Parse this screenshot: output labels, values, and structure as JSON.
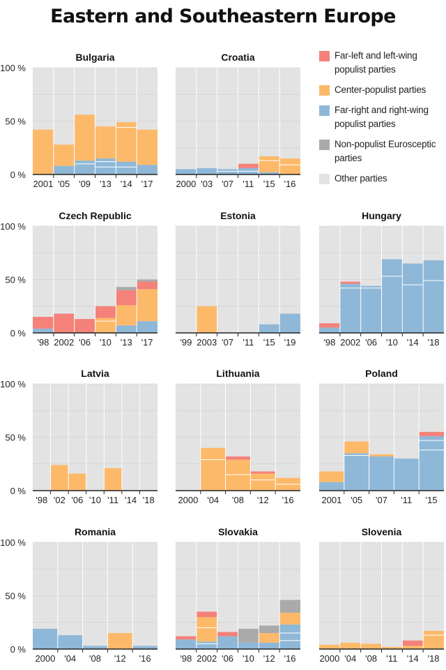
{
  "title": "Eastern and Southeastern Europe",
  "colors": {
    "far_left": "#f4817a",
    "center": "#fdb96a",
    "far_right": "#8fb8d8",
    "non_populist": "#aaaaaa",
    "other": "#e3e3e3"
  },
  "legend": [
    {
      "key": "far_left",
      "label": "Far-left and left-wing populist parties"
    },
    {
      "key": "center",
      "label": "Center-populist parties"
    },
    {
      "key": "far_right",
      "label": "Far-right and right-wing populist parties"
    },
    {
      "key": "non_populist",
      "label": "Non-populist Eurosceptic parties"
    },
    {
      "key": "other",
      "label": "Other parties"
    }
  ],
  "chart_data": [
    {
      "type": "bar",
      "title": "Bulgaria",
      "ylim": [
        0,
        100
      ],
      "yticks": [
        "100 %",
        "50 %",
        "0 %"
      ],
      "categories": [
        "2001",
        "'05",
        "'09",
        "'13",
        "'14",
        "'17"
      ],
      "series": [
        {
          "key": "far_right",
          "values": [
            0,
            8,
            13,
            15,
            12,
            9
          ],
          "parts": [
            [],
            [],
            [
              10
            ],
            [
              7,
              12
            ],
            [
              7
            ],
            []
          ]
        },
        {
          "key": "center",
          "values": [
            42,
            20,
            43,
            30,
            37,
            33
          ],
          "parts": [
            [],
            [],
            [],
            [],
            [
              44
            ],
            []
          ]
        },
        {
          "key": "far_left",
          "values": [
            0,
            0,
            0,
            0,
            0,
            0
          ]
        },
        {
          "key": "non_populist",
          "values": [
            0,
            0,
            0,
            0,
            0,
            0
          ]
        }
      ]
    },
    {
      "type": "bar",
      "title": "Croatia",
      "ylim": [
        0,
        100
      ],
      "categories": [
        "2000",
        "'03",
        "'07",
        "'11",
        "'15",
        "'16"
      ],
      "series": [
        {
          "key": "far_right",
          "values": [
            5,
            6,
            5,
            6,
            2,
            0
          ],
          "parts": [
            [],
            [],
            [
              3
            ],
            [
              3
            ],
            [],
            []
          ]
        },
        {
          "key": "center",
          "values": [
            0,
            0,
            0,
            0,
            15,
            15
          ],
          "parts": [
            [],
            [],
            [],
            [],
            [
              13
            ],
            [
              9
            ]
          ]
        },
        {
          "key": "far_left",
          "values": [
            0,
            0,
            0,
            4,
            0,
            0
          ]
        },
        {
          "key": "non_populist",
          "values": [
            0,
            0,
            0,
            0,
            0,
            0
          ]
        }
      ]
    },
    {
      "type": "bar",
      "title": "Czech Republic",
      "ylim": [
        0,
        100
      ],
      "yticks": [
        "100 %",
        "50 %",
        "0 %"
      ],
      "categories": [
        "'98",
        "2002",
        "'06",
        "'10",
        "'13",
        "'17"
      ],
      "series": [
        {
          "key": "far_right",
          "values": [
            4,
            0,
            0,
            0,
            7,
            11
          ]
        },
        {
          "key": "center",
          "values": [
            0,
            0,
            0,
            14,
            19,
            30
          ],
          "parts": [
            [],
            [],
            [],
            [
              11
            ],
            [],
            []
          ]
        },
        {
          "key": "far_left",
          "values": [
            11,
            18,
            13,
            11,
            14,
            7
          ]
        },
        {
          "key": "non_populist",
          "values": [
            0,
            0,
            0,
            0,
            3,
            2
          ]
        }
      ]
    },
    {
      "type": "bar",
      "title": "Estonia",
      "ylim": [
        0,
        100
      ],
      "categories": [
        "'99",
        "2003",
        "'07",
        "'11",
        "'15",
        "'19"
      ],
      "series": [
        {
          "key": "far_right",
          "values": [
            0,
            0,
            0,
            0,
            8,
            18
          ]
        },
        {
          "key": "center",
          "values": [
            0,
            25,
            0,
            0,
            0,
            0
          ]
        },
        {
          "key": "far_left",
          "values": [
            0,
            0,
            0,
            0,
            0,
            0
          ]
        },
        {
          "key": "non_populist",
          "values": [
            0,
            0,
            0,
            0,
            0,
            0
          ]
        }
      ]
    },
    {
      "type": "bar",
      "title": "Hungary",
      "ylim": [
        0,
        100
      ],
      "categories": [
        "'98",
        "2002",
        "'06",
        "'10",
        "'14",
        "'18"
      ],
      "series": [
        {
          "key": "far_right",
          "values": [
            5,
            46,
            44,
            69,
            65,
            68
          ],
          "parts": [
            [],
            [
              42
            ],
            [
              42
            ],
            [
              53
            ],
            [
              45
            ],
            [
              49
            ]
          ]
        },
        {
          "key": "center",
          "values": [
            0,
            0,
            0,
            0,
            0,
            0
          ]
        },
        {
          "key": "far_left",
          "values": [
            4,
            2,
            0,
            0,
            0,
            0
          ]
        },
        {
          "key": "non_populist",
          "values": [
            0,
            0,
            0,
            0,
            0,
            0
          ]
        }
      ]
    },
    {
      "type": "bar",
      "title": "Latvia",
      "ylim": [
        0,
        100
      ],
      "yticks": [
        "100 %",
        "50 %",
        "0 %"
      ],
      "categories": [
        "'98",
        "'02",
        "'06",
        "'10",
        "'11",
        "'14",
        "'18"
      ],
      "series": [
        {
          "key": "far_right",
          "values": [
            0,
            0,
            0,
            0,
            0,
            0,
            0
          ]
        },
        {
          "key": "center",
          "values": [
            0,
            24,
            16,
            0,
            21,
            0,
            0
          ]
        },
        {
          "key": "far_left",
          "values": [
            0,
            0,
            0,
            0,
            0,
            0,
            0
          ]
        },
        {
          "key": "non_populist",
          "values": [
            0,
            0,
            0,
            0,
            0,
            0,
            0
          ]
        }
      ]
    },
    {
      "type": "bar",
      "title": "Lithuania",
      "ylim": [
        0,
        100
      ],
      "categories": [
        "2000",
        "'04",
        "'08",
        "'12",
        "'16"
      ],
      "series": [
        {
          "key": "far_right",
          "values": [
            0,
            0,
            0,
            0,
            0
          ]
        },
        {
          "key": "center",
          "values": [
            0,
            40,
            29,
            16,
            12
          ],
          "parts": [
            [],
            [
              29
            ],
            [
              15
            ],
            [
              10
            ],
            [
              6
            ]
          ]
        },
        {
          "key": "far_left",
          "values": [
            0,
            0,
            3,
            2,
            0
          ]
        },
        {
          "key": "non_populist",
          "values": [
            0,
            0,
            0,
            0,
            0
          ]
        }
      ]
    },
    {
      "type": "bar",
      "title": "Poland",
      "ylim": [
        0,
        100
      ],
      "categories": [
        "2001",
        "'05",
        "'07",
        "'11",
        "'15"
      ],
      "series": [
        {
          "key": "far_right",
          "values": [
            8,
            35,
            32,
            30,
            51
          ],
          "parts": [
            [],
            [
              33
            ],
            [],
            [],
            [
              38,
              47
            ]
          ]
        },
        {
          "key": "center",
          "values": [
            10,
            11,
            2,
            0,
            0
          ]
        },
        {
          "key": "far_left",
          "values": [
            0,
            0,
            0,
            0,
            4
          ]
        },
        {
          "key": "non_populist",
          "values": [
            0,
            0,
            0,
            0,
            0
          ]
        }
      ]
    },
    {
      "type": "bar",
      "title": "Romania",
      "ylim": [
        0,
        100
      ],
      "yticks": [
        "100 %",
        "50 %",
        "0 %"
      ],
      "categories": [
        "2000",
        "'04",
        "'08",
        "'12",
        "'16"
      ],
      "series": [
        {
          "key": "far_right",
          "values": [
            19,
            13,
            3,
            0,
            3
          ]
        },
        {
          "key": "center",
          "values": [
            0,
            0,
            0,
            15,
            0
          ]
        },
        {
          "key": "far_left",
          "values": [
            0,
            0,
            0,
            0,
            0
          ]
        },
        {
          "key": "non_populist",
          "values": [
            0,
            0,
            0,
            0,
            0
          ]
        }
      ]
    },
    {
      "type": "bar",
      "title": "Slovakia",
      "ylim": [
        0,
        100
      ],
      "categories": [
        "'98",
        "2002",
        "'06",
        "'10",
        "'12",
        "'16"
      ],
      "series": [
        {
          "key": "far_right",
          "values": [
            9,
            7,
            12,
            6,
            6,
            23
          ],
          "parts": [
            [],
            [
              5
            ],
            [],
            [],
            [],
            [
              8,
              15
            ]
          ]
        },
        {
          "key": "center",
          "values": [
            0,
            23,
            0,
            0,
            9,
            11
          ],
          "parts": [
            [],
            [
              20
            ],
            [],
            [],
            [],
            []
          ]
        },
        {
          "key": "far_left",
          "values": [
            3,
            5,
            4,
            0,
            0,
            0
          ]
        },
        {
          "key": "non_populist",
          "values": [
            0,
            0,
            0,
            13,
            7,
            12
          ]
        }
      ]
    },
    {
      "type": "bar",
      "title": "Slovenia",
      "ylim": [
        0,
        100
      ],
      "categories": [
        "2000",
        "'04",
        "'08",
        "'11",
        "'14",
        "'18"
      ],
      "series": [
        {
          "key": "far_right",
          "values": [
            0,
            0,
            0,
            0,
            0,
            0
          ]
        },
        {
          "key": "center",
          "values": [
            4,
            6,
            5,
            2,
            3,
            17
          ],
          "parts": [
            [],
            [],
            [],
            [],
            [],
            [
              13
            ]
          ]
        },
        {
          "key": "far_left",
          "values": [
            0,
            0,
            0,
            0,
            5,
            0
          ]
        },
        {
          "key": "non_populist",
          "values": [
            0,
            0,
            0,
            0,
            0,
            0
          ]
        }
      ]
    }
  ]
}
